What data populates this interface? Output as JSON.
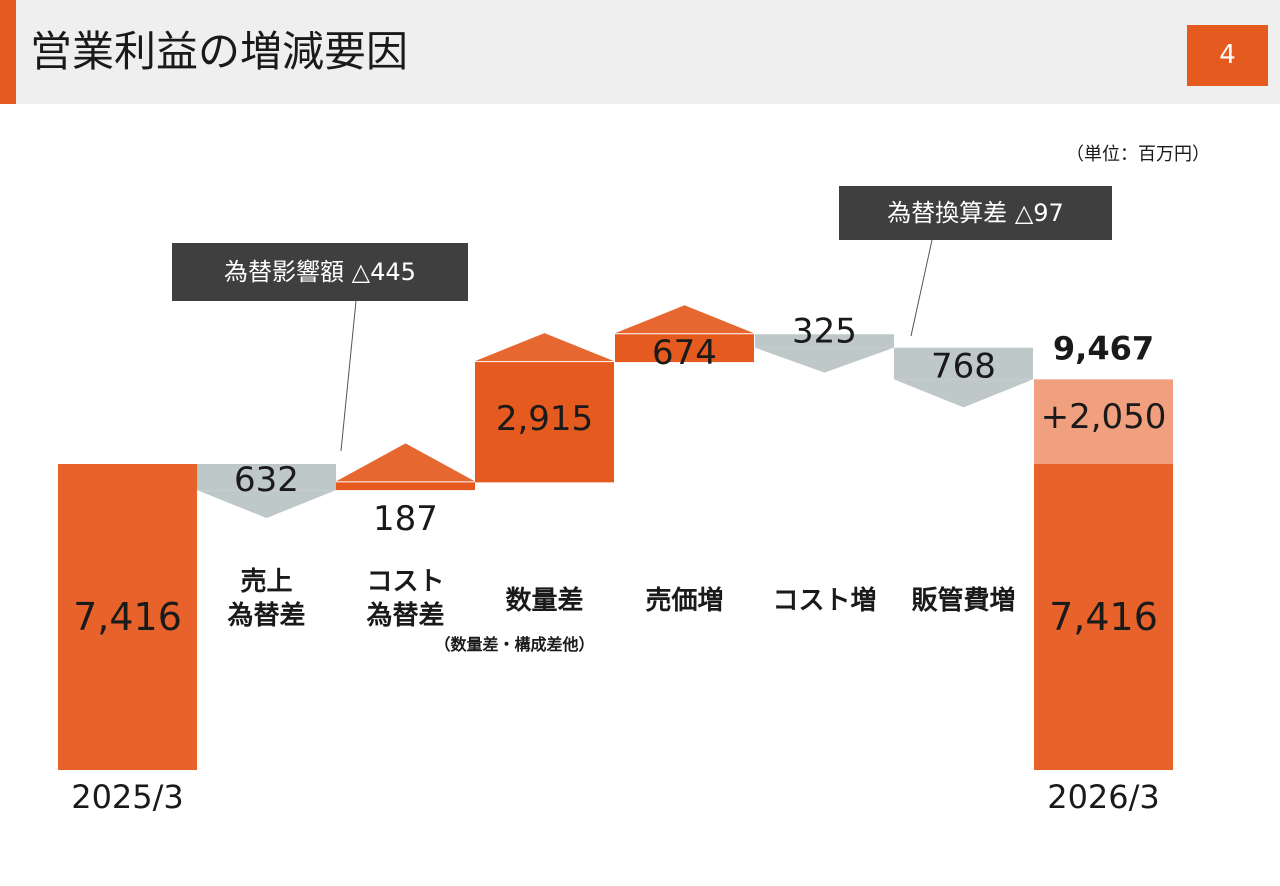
{
  "header": {
    "title": "営業利益の増減要因",
    "page_number": "4"
  },
  "unit_label": "（単位：百万円）",
  "colors": {
    "accent": "#e55a1e",
    "increase": "#e55a1e",
    "decrease": "#bfc8c9",
    "fx_increase": "#f0a07f",
    "callout_bg": "#3f3f3f",
    "header_bg": "#efefef"
  },
  "callouts": {
    "fx_impact": "為替影響額 △445",
    "translation_diff": "為替換算差 △97"
  },
  "chart_data": {
    "type": "waterfall",
    "start": {
      "label": "2025/3",
      "value": 7416,
      "value_label": "7,416"
    },
    "steps": [
      {
        "label_lines": [
          "売上",
          "為替差"
        ],
        "sublabel": "",
        "value": -632,
        "value_label": "632"
      },
      {
        "label_lines": [
          "コスト",
          "為替差"
        ],
        "sublabel": "",
        "value": 187,
        "value_label": "187"
      },
      {
        "label_lines": [
          "数量差"
        ],
        "sublabel": "（数量差・構成差他）",
        "value": 2915,
        "value_label": "2,915"
      },
      {
        "label_lines": [
          "売価増"
        ],
        "sublabel": "",
        "value": 674,
        "value_label": "674"
      },
      {
        "label_lines": [
          "コスト増"
        ],
        "sublabel": "",
        "value": -325,
        "value_label": "325"
      },
      {
        "label_lines": [
          "販管費増"
        ],
        "sublabel": "",
        "value": -768,
        "value_label": "768"
      }
    ],
    "end": {
      "label": "2026/3",
      "total": 9467,
      "total_label": "9,467",
      "base": 7416,
      "base_label": "7,416",
      "increase": 2050,
      "increase_label": "+2,050"
    }
  }
}
